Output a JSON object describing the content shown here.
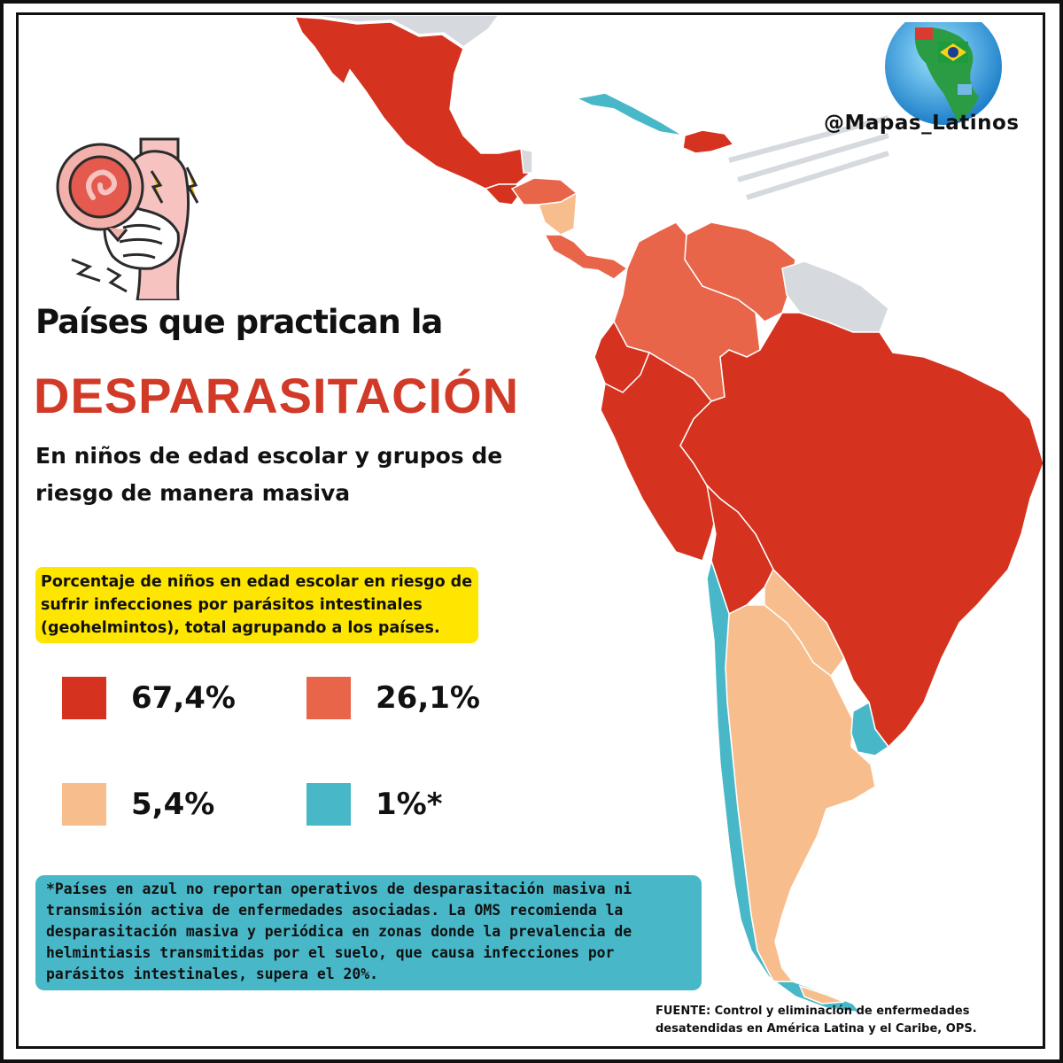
{
  "brand": {
    "handle": "@Mapas_Latinos"
  },
  "heading": {
    "line1": "Países que practican la",
    "line2": "DESPARASITACIÓN",
    "line3": "En niños de edad escolar y grupos de riesgo de manera masiva"
  },
  "highlight": {
    "text": "Porcentaje de niños en edad escolar en riesgo de sufrir infecciones por parásitos intestinales (geohelmintos), total agrupando a los países."
  },
  "legend": [
    {
      "value": "67,4%",
      "color": "#d5321f"
    },
    {
      "value": "26,1%",
      "color": "#e8654a"
    },
    {
      "value": "5,4%",
      "color": "#f8bd8c"
    },
    {
      "value": "1%*",
      "color": "#48b7c8"
    }
  ],
  "no_data_color": "#d6dadf",
  "note": {
    "text": "*Países en azul no reportan operativos de desparasitación masiva ni transmisión activa de enfermedades asociadas. La OMS recomienda la desparasitación masiva y periódica en zonas donde la prevalencia de helmintiasis transmitidas por el suelo, que causa infecciones por parásitos intestinales, supera el 20%."
  },
  "source": {
    "line1": "FUENTE: Control y eliminación de enfermedades",
    "line2": "desatendidas en América Latina y el Caribe, OPS."
  },
  "icons": {
    "illustration": "stomach-parasite-icon",
    "globe": "globe-flags-icon"
  }
}
